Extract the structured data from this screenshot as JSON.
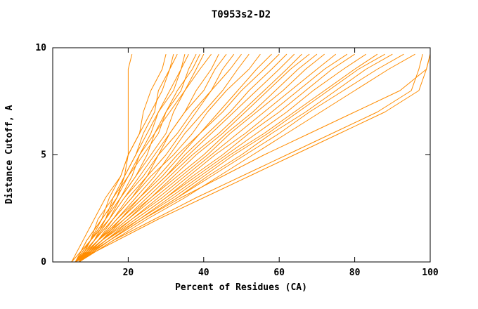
{
  "chart_data": {
    "type": "line",
    "title": "T0953s2-D2",
    "xlabel": "Percent of Residues (CA)",
    "ylabel": "Distance Cutoff, A",
    "xlim": [
      0,
      100
    ],
    "ylim": [
      0,
      10
    ],
    "x_ticks": [
      20,
      40,
      60,
      80,
      100
    ],
    "y_ticks": [
      0,
      5,
      10
    ],
    "grid": false,
    "legend": "none",
    "line_color": "#ff8c00",
    "frame_color": "#000000",
    "y_levels": [
      0,
      1,
      2,
      3,
      4,
      5,
      6,
      7,
      8,
      9,
      9.7
    ],
    "series": [
      {
        "x": [
          6,
          10,
          14,
          17,
          19,
          20,
          20,
          20,
          20,
          20,
          21
        ]
      },
      {
        "x": [
          6,
          9,
          13,
          15,
          18,
          20,
          23,
          24,
          26,
          29,
          30
        ]
      },
      {
        "x": [
          7,
          10,
          12,
          16,
          19,
          22,
          24,
          27,
          28,
          31,
          32
        ]
      },
      {
        "x": [
          5,
          8,
          11,
          14,
          18,
          20,
          23,
          26,
          29,
          31,
          33
        ]
      },
      {
        "x": [
          7,
          11,
          14,
          16,
          20,
          23,
          26,
          28,
          31,
          34,
          35
        ]
      },
      {
        "x": [
          6,
          9,
          13,
          17,
          19,
          22,
          25,
          28,
          32,
          34,
          36
        ]
      },
      {
        "x": [
          7,
          10,
          14,
          18,
          21,
          23,
          27,
          30,
          34,
          36,
          38
        ]
      },
      {
        "x": [
          6,
          10,
          13,
          17,
          20,
          24,
          28,
          30,
          33,
          37,
          39
        ]
      },
      {
        "x": [
          7,
          11,
          15,
          18,
          22,
          25,
          27,
          31,
          35,
          38,
          40
        ]
      },
      {
        "x": [
          6,
          10,
          14,
          18,
          22,
          26,
          30,
          32,
          35,
          39,
          42
        ]
      },
      {
        "x": [
          7,
          11,
          15,
          19,
          23,
          27,
          31,
          35,
          38,
          42,
          44
        ]
      },
      {
        "x": [
          5,
          10,
          15,
          19,
          24,
          28,
          31,
          35,
          40,
          43,
          46
        ]
      },
      {
        "x": [
          7,
          12,
          16,
          21,
          25,
          28,
          33,
          37,
          42,
          45,
          48
        ]
      },
      {
        "x": [
          6,
          11,
          16,
          20,
          25,
          30,
          34,
          38,
          42,
          47,
          50
        ]
      },
      {
        "x": [
          7,
          12,
          17,
          22,
          27,
          31,
          35,
          40,
          45,
          49,
          52
        ]
      },
      {
        "x": [
          6,
          11,
          16,
          21,
          26,
          32,
          37,
          41,
          46,
          52,
          55
        ]
      },
      {
        "x": [
          7,
          12,
          18,
          23,
          28,
          33,
          39,
          44,
          49,
          54,
          58
        ]
      },
      {
        "x": [
          6,
          12,
          17,
          23,
          29,
          34,
          39,
          45,
          50,
          56,
          60
        ]
      },
      {
        "x": [
          7,
          13,
          18,
          24,
          30,
          35,
          41,
          47,
          52,
          58,
          62
        ]
      },
      {
        "x": [
          6,
          12,
          18,
          24,
          30,
          36,
          42,
          48,
          54,
          60,
          64
        ]
      },
      {
        "x": [
          7,
          13,
          19,
          25,
          31,
          37,
          44,
          50,
          56,
          62,
          66
        ]
      },
      {
        "x": [
          6,
          12,
          19,
          26,
          32,
          38,
          45,
          51,
          57,
          63,
          68
        ]
      },
      {
        "x": [
          7,
          13,
          20,
          26,
          33,
          40,
          46,
          53,
          59,
          65,
          70
        ]
      },
      {
        "x": [
          6,
          13,
          20,
          27,
          34,
          41,
          47,
          54,
          61,
          67,
          72
        ]
      },
      {
        "x": [
          7,
          14,
          21,
          28,
          35,
          42,
          49,
          56,
          63,
          70,
          75
        ]
      },
      {
        "x": [
          6,
          13,
          21,
          29,
          36,
          43,
          51,
          58,
          65,
          72,
          78
        ]
      },
      {
        "x": [
          7,
          14,
          22,
          30,
          37,
          45,
          52,
          60,
          67,
          74,
          80
        ]
      },
      {
        "x": [
          6,
          14,
          22,
          30,
          38,
          46,
          54,
          62,
          69,
          77,
          83
        ]
      },
      {
        "x": [
          7,
          15,
          23,
          31,
          39,
          47,
          56,
          64,
          72,
          80,
          86
        ]
      },
      {
        "x": [
          6,
          14,
          23,
          32,
          40,
          48,
          57,
          65,
          73,
          81,
          88
        ]
      },
      {
        "x": [
          7,
          15,
          24,
          33,
          41,
          50,
          58,
          67,
          75,
          83,
          90
        ]
      },
      {
        "x": [
          6,
          15,
          24,
          33,
          42,
          51,
          60,
          68,
          77,
          86,
          93
        ]
      },
      {
        "x": [
          7,
          16,
          25,
          35,
          44,
          53,
          62,
          71,
          80,
          89,
          96
        ]
      },
      {
        "x": [
          7,
          16,
          27,
          38,
          50,
          62,
          74,
          86,
          95,
          97,
          98
        ]
      },
      {
        "x": [
          6,
          17,
          28,
          40,
          52,
          64,
          76,
          88,
          97,
          99,
          100
        ]
      },
      {
        "x": [
          7,
          15,
          24,
          34,
          45,
          56,
          68,
          80,
          92,
          99,
          100
        ]
      }
    ]
  }
}
